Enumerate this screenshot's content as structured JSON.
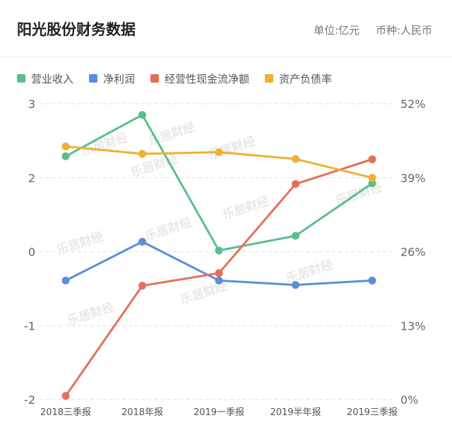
{
  "header": {
    "title": "阳光股份财务数据",
    "unit": "单位:亿元",
    "currency": "币种:人民币"
  },
  "chart_data": {
    "type": "line",
    "categories": [
      "2018三季报",
      "2018年报",
      "2019一季报",
      "2019半年报",
      "2019三季报"
    ],
    "y_left_ticks": [
      "3",
      "2",
      "0",
      "-1",
      "-2"
    ],
    "y_right_ticks": [
      "52%",
      "39%",
      "26%",
      "13%",
      "0%"
    ],
    "series": [
      {
        "name": "营业收入",
        "axis": "left",
        "color": "#5bbf8b",
        "values": [
          2.29,
          2.85,
          0.03,
          0.43,
          1.85
        ]
      },
      {
        "name": "净利润",
        "axis": "left",
        "color": "#5b8fdb",
        "values": [
          -0.39,
          0.27,
          -0.39,
          -0.45,
          -0.39
        ]
      },
      {
        "name": "经营性现金流净额",
        "axis": "left",
        "color": "#e5705a",
        "values": [
          -1.95,
          -0.46,
          -0.29,
          1.83,
          2.25
        ]
      },
      {
        "name": "资产负债率",
        "axis": "right",
        "color": "#f0b030",
        "values": [
          44.5,
          43.2,
          43.5,
          42.3,
          39.0
        ]
      }
    ],
    "grid": true,
    "legend": "top-left"
  },
  "watermark": "乐居财经"
}
